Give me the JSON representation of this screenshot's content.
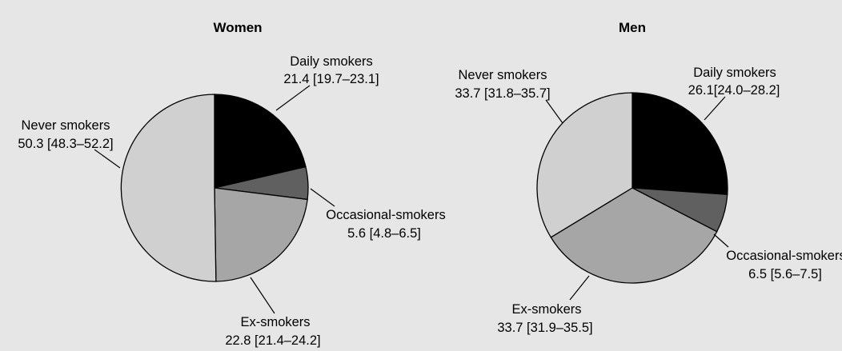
{
  "chart_data": [
    {
      "type": "pie",
      "title": "Women",
      "slices": [
        {
          "label": "Daily smokers",
          "value": 21.4,
          "ci": "21.4 [19.7–23.1]",
          "color": "#000000"
        },
        {
          "label": "Occasional-smokers",
          "value": 5.6,
          "ci": "5.6 [4.8–6.5]",
          "color": "#606060"
        },
        {
          "label": "Ex-smokers",
          "value": 22.8,
          "ci": "22.8 [21.4–24.2]",
          "color": "#a6a6a6"
        },
        {
          "label": "Never smokers",
          "value": 50.3,
          "ci": "50.3 [48.3–52.2]",
          "color": "#d0d0d0"
        }
      ]
    },
    {
      "type": "pie",
      "title": "Men",
      "slices": [
        {
          "label": "Daily smokers",
          "value": 26.1,
          "ci": "26.1[24.0–28.2]",
          "color": "#000000"
        },
        {
          "label": "Occasional-smokers",
          "value": 6.5,
          "ci": "6.5 [5.6–7.5]",
          "color": "#606060"
        },
        {
          "label": "Ex-smokers",
          "value": 33.7,
          "ci": "33.7 [31.9–35.5]",
          "color": "#a6a6a6"
        },
        {
          "label": "Never smokers",
          "value": 33.7,
          "ci": "33.7 [31.8–35.7]",
          "color": "#d0d0d0"
        }
      ]
    }
  ]
}
